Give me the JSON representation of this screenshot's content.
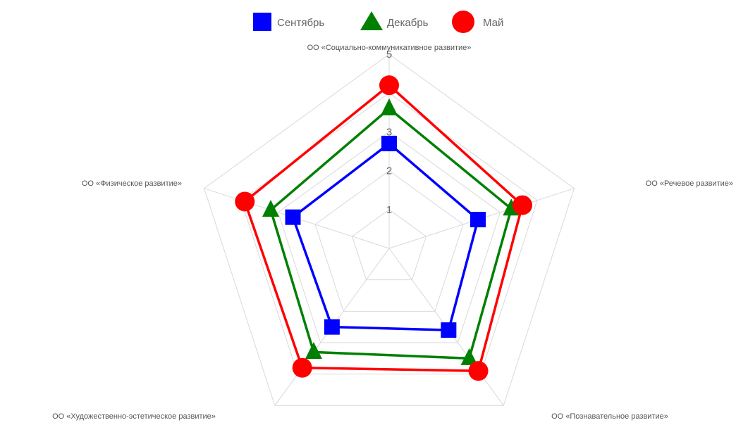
{
  "chart_data": {
    "type": "radar",
    "axes": [
      "ОО «Социально-коммуникативное развитие»",
      "ОО «Речевое развитие»",
      "ОО «Познавательное развитие»",
      "ОО «Художественно-эстетическое развитие»",
      "ОО «Физическое развитие»"
    ],
    "series": [
      {
        "name": "Сентябрь",
        "values": [
          2.7,
          2.4,
          2.6,
          2.5,
          2.6
        ],
        "color": "#0000ff",
        "marker": "square"
      },
      {
        "name": "Декабрь",
        "values": [
          3.6,
          3.3,
          3.5,
          3.3,
          3.2
        ],
        "color": "#008000",
        "marker": "triangle"
      },
      {
        "name": "Май",
        "values": [
          4.2,
          3.6,
          3.9,
          3.8,
          3.9
        ],
        "color": "#ff0000",
        "marker": "circle"
      }
    ],
    "rlim": [
      0,
      5
    ],
    "ticks": [
      1,
      2,
      3,
      4,
      5
    ],
    "tick_labels": [
      "1",
      "2",
      "3",
      "",
      "5"
    ],
    "grid": true,
    "legend_position": "top-center",
    "grid_color": "#d9d9d9"
  }
}
